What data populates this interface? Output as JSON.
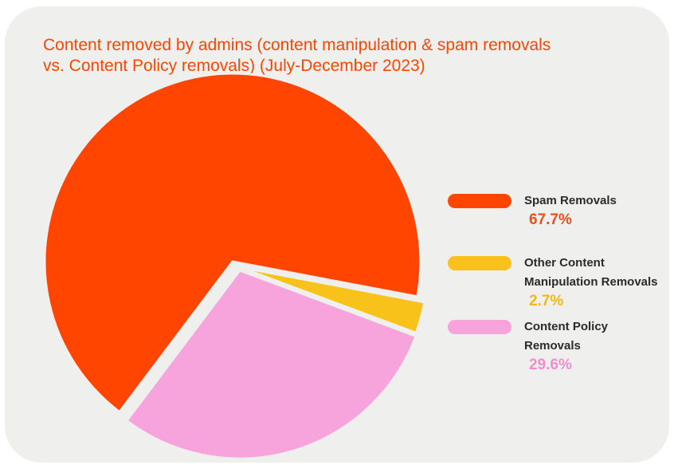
{
  "colors": {
    "spam": "#ff4500",
    "other": "#f9c21a",
    "policy": "#f7a4dd",
    "spam_value": "#e8501c",
    "other_value": "#f4b80f",
    "policy_value": "#ef8ecf",
    "background": "#efefed"
  },
  "chart_data": {
    "type": "pie",
    "title_lines": [
      "Content removed by admins (content manipulation & spam removals",
      "vs. Content Policy removals) (July-December 2023)"
    ],
    "slices": [
      {
        "key": "spam",
        "label_lines": [
          "Spam Removals"
        ],
        "value": 67.7,
        "value_label": "67.7%"
      },
      {
        "key": "other",
        "label_lines": [
          "Other Content",
          "Manipulation Removals"
        ],
        "value": 2.7,
        "value_label": "2.7%"
      },
      {
        "key": "policy",
        "label_lines": [
          "Content Policy",
          "Removals"
        ],
        "value": 29.6,
        "value_label": "29.6%"
      }
    ],
    "legend_position": "right"
  }
}
